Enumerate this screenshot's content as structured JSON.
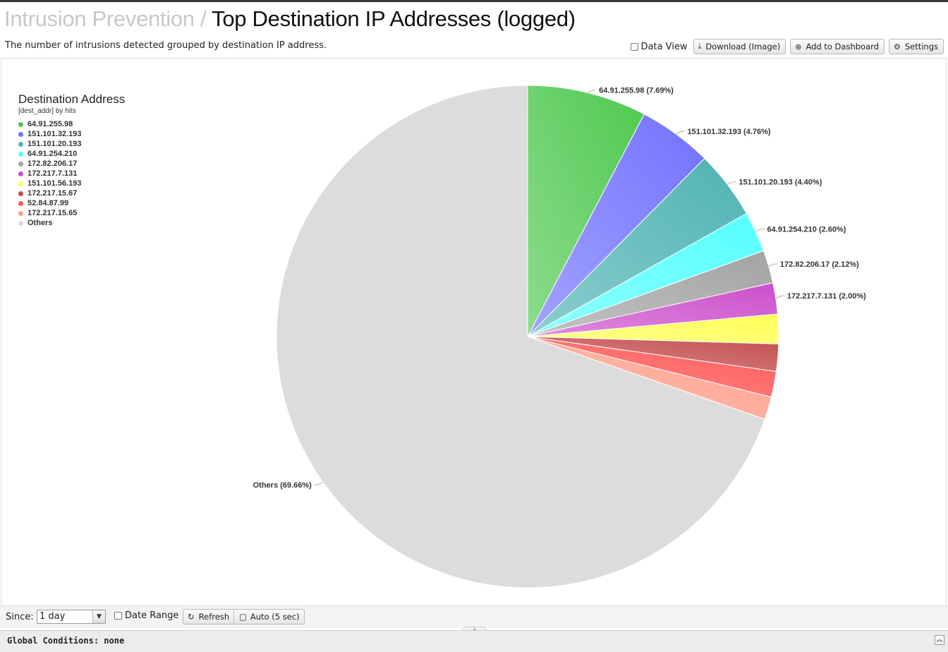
{
  "header": {
    "crumb": "Intrusion Prevention",
    "separator": "/",
    "title": "Top Destination IP Addresses (logged)",
    "description": "The number of intrusions detected grouped by destination IP address."
  },
  "toolbar": {
    "data_view_label": "Data View",
    "download_label": "Download (Image)",
    "download_icon": "download-icon",
    "dashboard_label": "Add to Dashboard",
    "dashboard_icon": "plus-circle-icon",
    "settings_label": "Settings",
    "settings_icon": "gear-icon"
  },
  "chart_data": {
    "type": "pie",
    "title": "Destination Address",
    "subtitle": "[dest_addr] by hits",
    "legend_position": "top-left",
    "categories": [
      "64.91.255.98",
      "151.101.32.193",
      "151.101.20.193",
      "64.91.254.210",
      "172.82.206.17",
      "172.217.7.131",
      "151.101.56.193",
      "172.217.15.67",
      "52.84.87.99",
      "172.217.15.65",
      "Others"
    ],
    "values": [
      7.69,
      4.76,
      4.4,
      2.6,
      2.12,
      2.0,
      1.9,
      1.75,
      1.65,
      1.47,
      69.66
    ],
    "colors": [
      "#4fc94f",
      "#7272ff",
      "#4fb3b3",
      "#55ffff",
      "#a3a3a3",
      "#cc4fcc",
      "#ffff55",
      "#c44e4e",
      "#ff5555",
      "#ff9f8a",
      "#dcdcdc"
    ],
    "labels": [
      "64.91.255.98 (7.69%)",
      "151.101.32.193 (4.76%)",
      "151.101.20.193 (4.40%)",
      "64.91.254.210 (2.60%)",
      "172.82.206.17 (2.12%)",
      "172.217.7.131 (2.00%)",
      "",
      "",
      "",
      "",
      "Others (69.66%)"
    ]
  },
  "footer": {
    "since_label": "Since:",
    "since_value": "1 day",
    "date_range_label": "Date Range",
    "refresh_label": "Refresh",
    "refresh_icon": "refresh-icon",
    "auto_label": "Auto (5 sec)",
    "auto_icon": "square-icon",
    "global_conditions": "Global Conditions: none",
    "collapse_icon": "double-chevron-up-icon"
  }
}
